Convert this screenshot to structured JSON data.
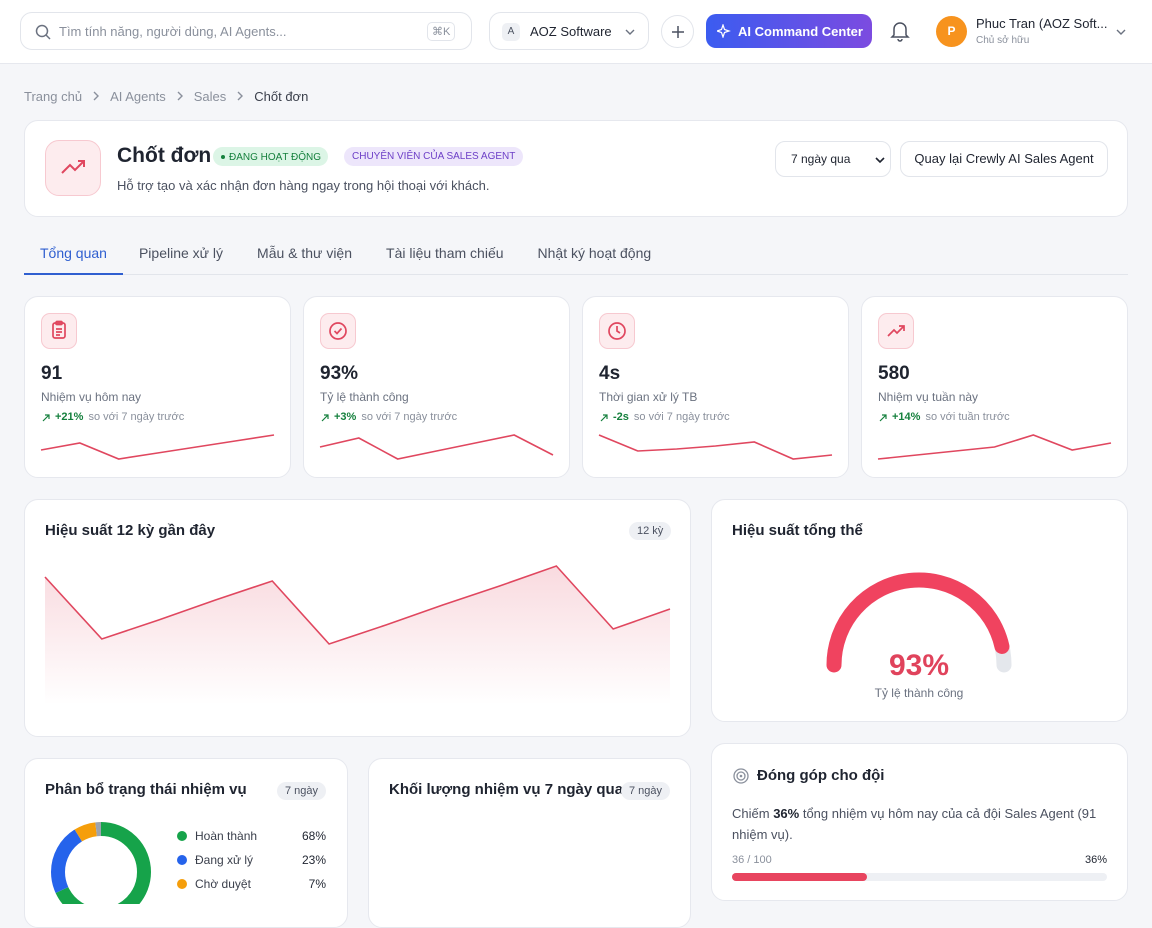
{
  "topbar": {
    "search_placeholder": "Tìm tính năng, người dùng, AI Agents...",
    "shortcut": "⌘K",
    "org_initial": "A",
    "org": "AOZ Software",
    "command_button": "AI Command Center",
    "avatar_initial": "P",
    "user_name": "Phuc Tran (AOZ Soft...",
    "user_role": "Chủ sở hữu"
  },
  "breadcrumb": [
    "Trang chủ",
    "AI Agents",
    "Sales",
    "Chốt đơn"
  ],
  "header": {
    "title": "Chốt đơn",
    "status": "ĐANG HOẠT ĐỘNG",
    "role_badge": "CHUYÊN VIÊN CỦA SALES AGENT",
    "description": "Hỗ trợ tạo và xác nhận đơn hàng ngay trong hội thoại với khách.",
    "period": "7 ngày qua",
    "back_button": "Quay lại Crewly AI Sales Agent"
  },
  "tabs": [
    "Tổng quan",
    "Pipeline xử lý",
    "Mẫu & thư viện",
    "Tài liệu tham chiếu",
    "Nhật ký hoạt động"
  ],
  "active_tab": 0,
  "stats": [
    {
      "value": "91",
      "label": "Nhiệm vụ hôm nay",
      "change": "+21%",
      "comparison": "so với 7 ngày trước",
      "sparkline": [
        15,
        22,
        6,
        12,
        18,
        24,
        30
      ]
    },
    {
      "value": "93%",
      "label": "Tỷ lệ thành công",
      "change": "+3%",
      "comparison": "so với 7 ngày trước",
      "sparkline": [
        18,
        27,
        6,
        14,
        22,
        30,
        10
      ]
    },
    {
      "value": "4s",
      "label": "Thời gian xử lý TB",
      "change": "-2s",
      "comparison": "so với 7 ngày trước",
      "sparkline": [
        30,
        14,
        16,
        19,
        23,
        6,
        10
      ]
    },
    {
      "value": "580",
      "label": "Nhiệm vụ tuần này",
      "change": "+14%",
      "comparison": "so với tuần trước",
      "sparkline": [
        6,
        10,
        14,
        18,
        30,
        15,
        22
      ]
    }
  ],
  "performance_chart": {
    "type": "area",
    "title": "Hiệu suất 12 kỳ gần đây",
    "badge": "12 kỳ",
    "color": "#e0475f",
    "values": [
      128,
      66,
      85,
      105,
      124,
      61,
      80,
      100,
      119,
      139,
      76,
      96
    ]
  },
  "gauge": {
    "type": "gauge",
    "title": "Hiệu suất tổng thể",
    "value": 93,
    "value_label": "93%",
    "caption": "Tỷ lệ thành công",
    "color": "#f0435f"
  },
  "distribution": {
    "type": "donut",
    "title": "Phân bổ trạng thái nhiệm vụ",
    "badge": "7 ngày",
    "categories": [
      "Hoàn thành",
      "Đang xử lý",
      "Chờ duyệt",
      null
    ],
    "values": [
      68,
      23,
      7,
      2
    ],
    "value_labels": [
      "68%",
      "23%",
      "7%",
      null
    ],
    "colors": [
      "#16a34a",
      "#2563eb",
      "#f59e0b",
      "#9ca3af"
    ]
  },
  "volume": {
    "title": "Khối lượng nhiệm vụ 7 ngày qua",
    "badge": "7 ngày"
  },
  "contribution": {
    "title": "Đóng góp cho đội",
    "text": [
      "Chiếm ",
      "36%",
      " tổng nhiệm vụ hôm nay của cả đội Sales Agent (91 nhiệm vụ)."
    ],
    "progress": {
      "text": "36 / 100",
      "value": 36,
      "max": 100,
      "value_label": "36%"
    }
  }
}
